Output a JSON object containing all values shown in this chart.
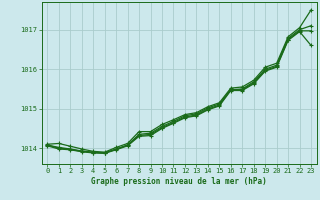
{
  "bg_color": "#cce8ec",
  "grid_color": "#aacccc",
  "line_color": "#1a6b1a",
  "marker_color": "#1a6b1a",
  "xlabel": "Graphe pression niveau de la mer (hPa)",
  "title_color": "#1a6b1a",
  "xlim": [
    -0.5,
    23.5
  ],
  "ylim": [
    1013.6,
    1017.7
  ],
  "yticks": [
    1014,
    1015,
    1016,
    1017
  ],
  "xticks": [
    0,
    1,
    2,
    3,
    4,
    5,
    6,
    7,
    8,
    9,
    10,
    11,
    12,
    13,
    14,
    15,
    16,
    17,
    18,
    19,
    20,
    21,
    22,
    23
  ],
  "series": [
    [
      1014.1,
      1014.12,
      1014.05,
      1013.98,
      1013.92,
      1013.9,
      1014.02,
      1014.12,
      1014.42,
      1014.42,
      1014.6,
      1014.72,
      1014.85,
      1014.9,
      1015.05,
      1015.15,
      1015.52,
      1015.55,
      1015.72,
      1016.05,
      1016.15,
      1016.82,
      1017.05,
      1017.5
    ],
    [
      1014.08,
      1014.02,
      1013.98,
      1013.93,
      1013.9,
      1013.88,
      1013.98,
      1014.08,
      1014.35,
      1014.38,
      1014.55,
      1014.68,
      1014.82,
      1014.87,
      1015.02,
      1015.12,
      1015.48,
      1015.5,
      1015.68,
      1016.0,
      1016.1,
      1016.78,
      1017.0,
      1017.1
    ],
    [
      1014.08,
      1014.0,
      1013.97,
      1013.92,
      1013.89,
      1013.88,
      1013.97,
      1014.08,
      1014.32,
      1014.35,
      1014.52,
      1014.65,
      1014.79,
      1014.84,
      1014.99,
      1015.09,
      1015.48,
      1015.48,
      1015.65,
      1015.97,
      1016.07,
      1016.75,
      1016.97,
      1016.97
    ],
    [
      1014.06,
      1013.98,
      1013.96,
      1013.91,
      1013.88,
      1013.87,
      1013.96,
      1014.06,
      1014.3,
      1014.32,
      1014.5,
      1014.63,
      1014.77,
      1014.82,
      1014.97,
      1015.07,
      1015.46,
      1015.46,
      1015.63,
      1015.95,
      1016.05,
      1016.73,
      1016.95,
      1016.6
    ]
  ]
}
